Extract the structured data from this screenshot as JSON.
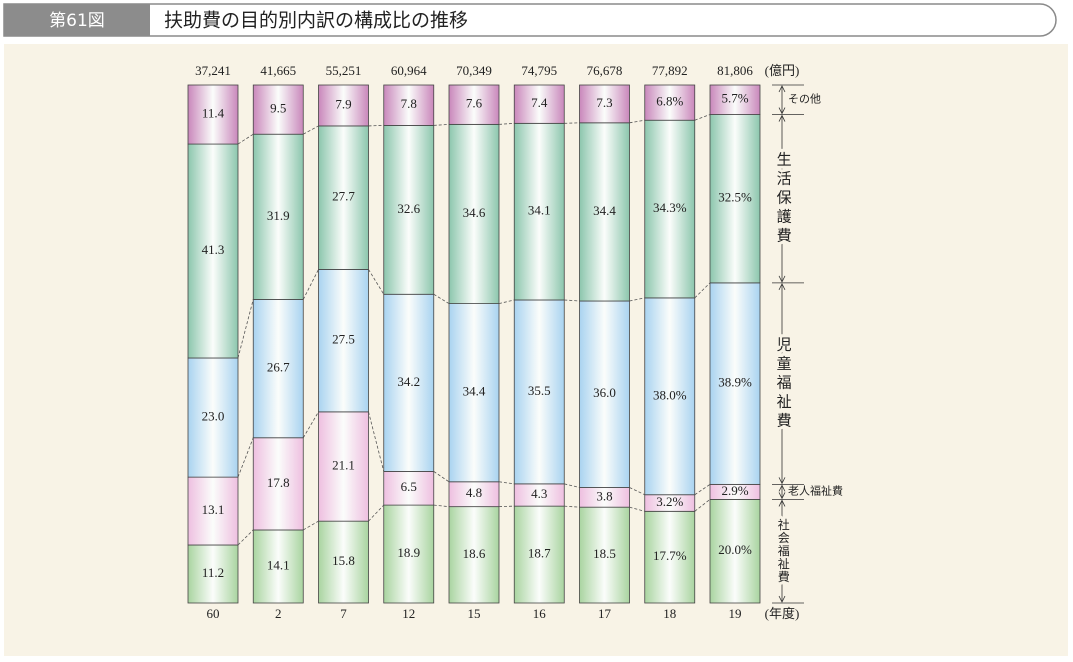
{
  "header": {
    "figure": "第61図",
    "title": "扶助費の目的別内訳の構成比の推移"
  },
  "chart_data": {
    "type": "stacked_bar",
    "categories": [
      "60",
      "2",
      "7",
      "12",
      "15",
      "16",
      "17",
      "18",
      "19"
    ],
    "x_unit": "(年度)",
    "totals": [
      {
        "value": 37241,
        "label": "37,241"
      },
      {
        "value": 41665,
        "label": "41,665"
      },
      {
        "value": 55251,
        "label": "55,251"
      },
      {
        "value": 60964,
        "label": "60,964"
      },
      {
        "value": 70349,
        "label": "70,349"
      },
      {
        "value": 74795,
        "label": "74,795"
      },
      {
        "value": 76678,
        "label": "76,678"
      },
      {
        "value": 77892,
        "label": "77,892"
      },
      {
        "value": 81806,
        "label": "81,806"
      }
    ],
    "total_unit": "(億円)",
    "ylim": [
      0,
      100
    ],
    "series": [
      {
        "name": "社会福祉費",
        "color": "#a9d4a0",
        "values": [
          11.2,
          14.1,
          15.8,
          18.9,
          18.6,
          18.7,
          18.5,
          17.7,
          20.0
        ],
        "value_labels": [
          "11.2",
          "14.1",
          "15.8",
          "18.9",
          "18.6",
          "18.7",
          "18.5",
          "17.7%",
          "20.0%"
        ]
      },
      {
        "name": "老人福祉費",
        "color": "#eebfe0",
        "values": [
          13.1,
          17.8,
          21.1,
          6.5,
          4.8,
          4.3,
          3.8,
          3.2,
          2.9
        ],
        "value_labels": [
          "13.1",
          "17.8",
          "21.1",
          "6.5",
          "4.8",
          "4.3",
          "3.8",
          "3.2%",
          "2.9%"
        ]
      },
      {
        "name": "児童福祉費",
        "color": "#a9d3f0",
        "values": [
          23.0,
          26.7,
          27.5,
          34.2,
          34.4,
          35.5,
          36.0,
          38.0,
          38.9
        ],
        "value_labels": [
          "23.0",
          "26.7",
          "27.5",
          "34.2",
          "34.4",
          "35.5",
          "36.0",
          "38.0%",
          "38.9%"
        ]
      },
      {
        "name": "生活保護費",
        "color": "#8cc6ad",
        "values": [
          41.3,
          31.9,
          27.7,
          32.6,
          34.6,
          34.1,
          34.4,
          34.3,
          32.5
        ],
        "value_labels": [
          "41.3",
          "31.9",
          "27.7",
          "32.6",
          "34.6",
          "34.1",
          "34.4",
          "34.3%",
          "32.5%"
        ]
      },
      {
        "name": "その他",
        "color": "#c987bb",
        "values": [
          11.4,
          9.5,
          7.9,
          7.8,
          7.6,
          7.4,
          7.3,
          6.8,
          5.7
        ],
        "value_labels": [
          "11.4",
          "9.5",
          "7.9",
          "7.8",
          "7.6",
          "7.4",
          "7.3",
          "6.8%",
          "5.7%"
        ]
      }
    ]
  }
}
